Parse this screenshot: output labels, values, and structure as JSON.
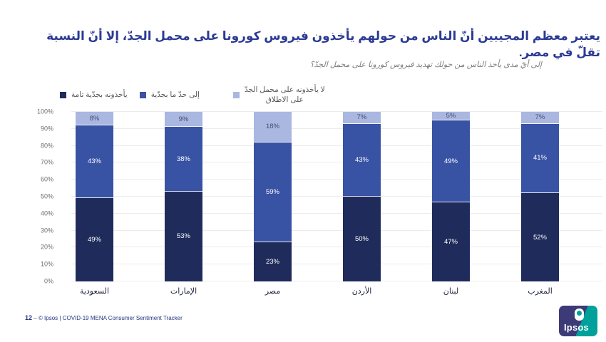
{
  "page": {
    "title": "يعتبر معظم المجيبين أنّ الناس من حولهم يأخذون فيروس كورونا على محمل الجدّ، إلا أنّ النسبة تقلّ في مصر.",
    "subtitle": "إلى أيّ مدى يأخذ الناس من حولك تهديد فيروس كورونا على محمل الجدّ؟"
  },
  "legend": {
    "items": [
      {
        "label": "يأخذونه بجدّية تامة",
        "color": "#1f2b5b"
      },
      {
        "label": "إلى حدّ ما بجدّية",
        "color": "#3852a4"
      },
      {
        "label": "لا يأخذونه على محمل الجدّ\nعلى الاطلاق",
        "color": "#a9b7e1"
      }
    ]
  },
  "chart_data": {
    "type": "bar",
    "stacked": true,
    "title": "",
    "xlabel": "",
    "ylabel": "",
    "categories": [
      "السعودية",
      "الإمارات",
      "مصر",
      "الأردن",
      "لبنان",
      "المغرب"
    ],
    "series": [
      {
        "name": "يأخذونه بجدّية تامة",
        "color": "#1f2b5b",
        "label_color": "#ffffff",
        "values": [
          49,
          53,
          23,
          50,
          47,
          52
        ]
      },
      {
        "name": "إلى حدّ ما بجدّية",
        "color": "#3852a4",
        "label_color": "#ffffff",
        "values": [
          43,
          38,
          59,
          43,
          49,
          41
        ]
      },
      {
        "name": "لا يأخذونه على محمل الجدّ على الاطلاق",
        "color": "#a9b7e1",
        "label_color": "#474f6d",
        "values": [
          8,
          9,
          18,
          7,
          5,
          7
        ]
      }
    ],
    "value_suffix": "%",
    "y_axis": {
      "min": 0,
      "max": 100,
      "step": 10,
      "tick_suffix": "%"
    },
    "grid": true,
    "legend_position": "top"
  },
  "footer": {
    "page_number": "12",
    "separator": "–",
    "text": "© Ipsos | COVID-19 MENA Consumer Sentiment Tracker"
  },
  "logo": {
    "text": "Ipsos",
    "color_primary": "#3d3a78",
    "color_secondary": "#00a19b"
  }
}
